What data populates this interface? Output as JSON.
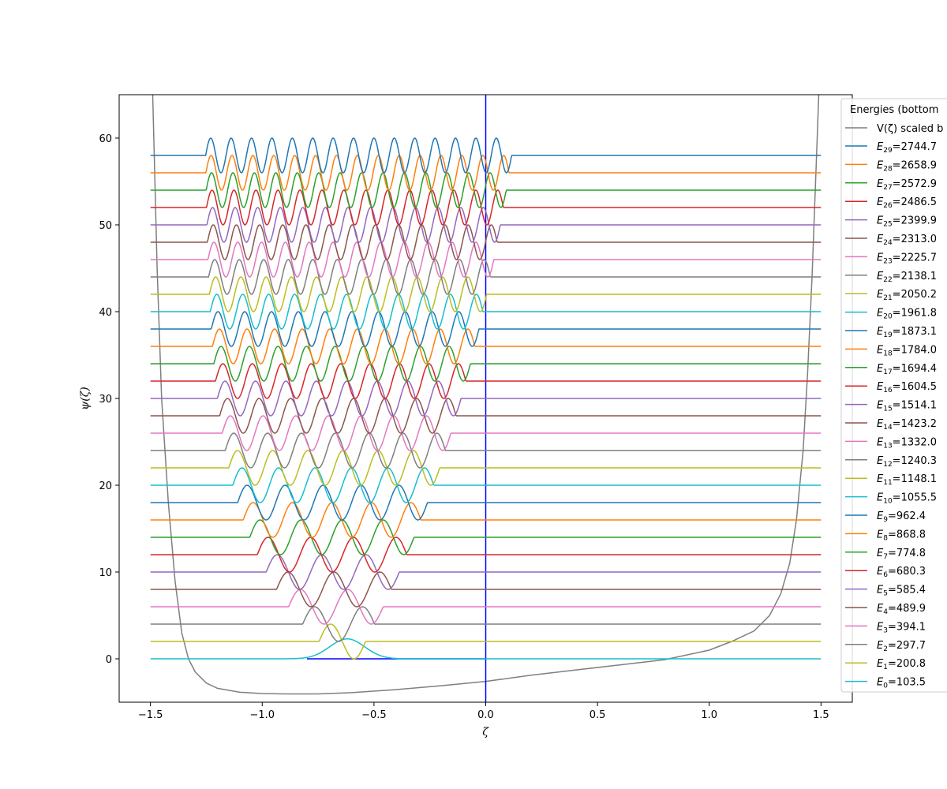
{
  "chart_data": {
    "type": "line",
    "title": "",
    "xlabel": "ζ",
    "ylabel": "ψ(ζ)",
    "xlim": [
      -1.64,
      1.64
    ],
    "ylim": [
      -5,
      65
    ],
    "xticks": [
      -1.5,
      -1.0,
      -0.5,
      0.0,
      0.5,
      1.0,
      1.5
    ],
    "yticks": [
      0,
      10,
      20,
      30,
      40,
      50,
      60
    ],
    "xtick_labels": [
      "−1.5",
      "−1.0",
      "−0.5",
      "0.0",
      "0.5",
      "1.0",
      "1.5"
    ],
    "ytick_labels": [
      "0",
      "10",
      "20",
      "30",
      "40",
      "50",
      "60"
    ],
    "grid": false,
    "legend_placement": "right",
    "legend_title": "Energies (bottom",
    "potential_label": "V(ζ) scaled b",
    "potential_color": "#7f7f7f",
    "vertical_line": {
      "x": 0.0,
      "color": "#0000ff"
    },
    "well_floor": {
      "x": [
        -0.8,
        0.0
      ],
      "y": 0,
      "color": "#0000ff"
    },
    "potential": {
      "x": [
        -1.49,
        -1.47,
        -1.45,
        -1.42,
        -1.39,
        -1.36,
        -1.33,
        -1.3,
        -1.25,
        -1.2,
        -1.1,
        -1.0,
        -0.9,
        -0.75,
        -0.6,
        -0.4,
        -0.2,
        0.0,
        0.2,
        0.4,
        0.6,
        0.8,
        1.0,
        1.1,
        1.2,
        1.27,
        1.32,
        1.36,
        1.39,
        1.42,
        1.44,
        1.46,
        1.48,
        1.49
      ],
      "y": [
        65,
        45,
        30,
        18,
        9,
        3,
        0,
        -1.5,
        -2.8,
        -3.4,
        -3.85,
        -4.0,
        -4.05,
        -4.05,
        -3.9,
        -3.55,
        -3.1,
        -2.6,
        -1.9,
        -1.3,
        -0.7,
        -0.1,
        1.0,
        2.0,
        3.2,
        5.0,
        7.5,
        11,
        16,
        24,
        33,
        44,
        58,
        65
      ]
    },
    "series": [
      {
        "name": "E",
        "sub": "0",
        "value": "=103.5",
        "n": 0,
        "offset": 0,
        "color": "#17becf"
      },
      {
        "name": "E",
        "sub": "1",
        "value": "=200.8",
        "n": 1,
        "offset": 2,
        "color": "#bcbd22"
      },
      {
        "name": "E",
        "sub": "2",
        "value": "=297.7",
        "n": 2,
        "offset": 4,
        "color": "#7f7f7f"
      },
      {
        "name": "E",
        "sub": "3",
        "value": "=394.1",
        "n": 3,
        "offset": 6,
        "color": "#e377c2"
      },
      {
        "name": "E",
        "sub": "4",
        "value": "=489.9",
        "n": 4,
        "offset": 8,
        "color": "#8c564b"
      },
      {
        "name": "E",
        "sub": "5",
        "value": "=585.4",
        "n": 5,
        "offset": 10,
        "color": "#9467bd"
      },
      {
        "name": "E",
        "sub": "6",
        "value": "=680.3",
        "n": 6,
        "offset": 12,
        "color": "#d62728"
      },
      {
        "name": "E",
        "sub": "7",
        "value": "=774.8",
        "n": 7,
        "offset": 14,
        "color": "#2ca02c"
      },
      {
        "name": "E",
        "sub": "8",
        "value": "=868.8",
        "n": 8,
        "offset": 16,
        "color": "#ff7f0e"
      },
      {
        "name": "E",
        "sub": "9",
        "value": "=962.4",
        "n": 9,
        "offset": 18,
        "color": "#1f77b4"
      },
      {
        "name": "E",
        "sub": "10",
        "value": "=1055.5",
        "n": 10,
        "offset": 20,
        "color": "#17becf"
      },
      {
        "name": "E",
        "sub": "11",
        "value": "=1148.1",
        "n": 11,
        "offset": 22,
        "color": "#bcbd22"
      },
      {
        "name": "E",
        "sub": "12",
        "value": "=1240.3",
        "n": 12,
        "offset": 24,
        "color": "#7f7f7f"
      },
      {
        "name": "E",
        "sub": "13",
        "value": "=1332.0",
        "n": 13,
        "offset": 26,
        "color": "#e377c2"
      },
      {
        "name": "E",
        "sub": "14",
        "value": "=1423.2",
        "n": 14,
        "offset": 28,
        "color": "#8c564b"
      },
      {
        "name": "E",
        "sub": "15",
        "value": "=1514.1",
        "n": 15,
        "offset": 30,
        "color": "#9467bd"
      },
      {
        "name": "E",
        "sub": "16",
        "value": "=1604.5",
        "n": 16,
        "offset": 32,
        "color": "#d62728"
      },
      {
        "name": "E",
        "sub": "17",
        "value": "=1694.4",
        "n": 17,
        "offset": 34,
        "color": "#2ca02c"
      },
      {
        "name": "E",
        "sub": "18",
        "value": "=1784.0",
        "n": 18,
        "offset": 36,
        "color": "#ff7f0e"
      },
      {
        "name": "E",
        "sub": "19",
        "value": "=1873.1",
        "n": 19,
        "offset": 38,
        "color": "#1f77b4"
      },
      {
        "name": "E",
        "sub": "20",
        "value": "=1961.8",
        "n": 20,
        "offset": 40,
        "color": "#17becf"
      },
      {
        "name": "E",
        "sub": "21",
        "value": "=2050.2",
        "n": 21,
        "offset": 42,
        "color": "#bcbd22"
      },
      {
        "name": "E",
        "sub": "22",
        "value": "=2138.1",
        "n": 22,
        "offset": 44,
        "color": "#7f7f7f"
      },
      {
        "name": "E",
        "sub": "23",
        "value": "=2225.7",
        "n": 23,
        "offset": 46,
        "color": "#e377c2"
      },
      {
        "name": "E",
        "sub": "24",
        "value": "=2313.0",
        "n": 24,
        "offset": 48,
        "color": "#8c564b"
      },
      {
        "name": "E",
        "sub": "25",
        "value": "=2399.9",
        "n": 25,
        "offset": 50,
        "color": "#9467bd"
      },
      {
        "name": "E",
        "sub": "26",
        "value": "=2486.5",
        "n": 26,
        "offset": 52,
        "color": "#d62728"
      },
      {
        "name": "E",
        "sub": "27",
        "value": "=2572.9",
        "n": 27,
        "offset": 54,
        "color": "#2ca02c"
      },
      {
        "name": "E",
        "sub": "28",
        "value": "=2658.9",
        "n": 28,
        "offset": 56,
        "color": "#ff7f0e"
      },
      {
        "name": "E",
        "sub": "29",
        "value": "=2744.7",
        "n": 29,
        "offset": 58,
        "color": "#1f77b4"
      }
    ]
  }
}
